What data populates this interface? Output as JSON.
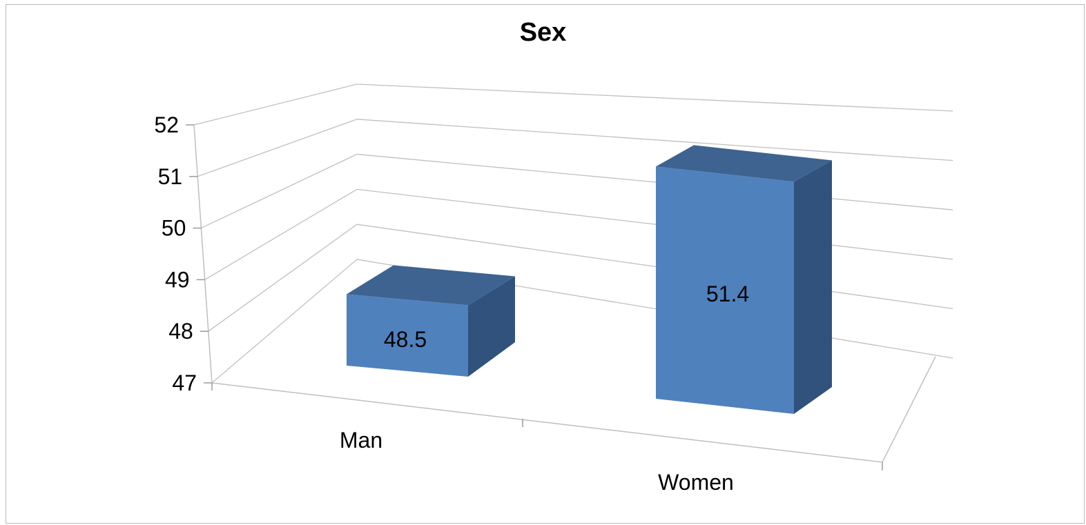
{
  "chart_data": {
    "type": "bar",
    "title": "Sex",
    "categories": [
      "Man",
      "Women"
    ],
    "values": [
      48.5,
      51.4
    ],
    "data_labels": [
      "48.5",
      "51.4"
    ],
    "ylim": [
      47,
      52
    ],
    "yticks": [
      "47",
      "48",
      "49",
      "50",
      "51",
      "52"
    ],
    "xlabel": "",
    "ylabel": "",
    "grid": true,
    "style": "3d-column",
    "colors": {
      "front": "#4f81bd",
      "top": "#3e6390",
      "side": "#31527c",
      "grid": "#bfbfbf"
    }
  }
}
